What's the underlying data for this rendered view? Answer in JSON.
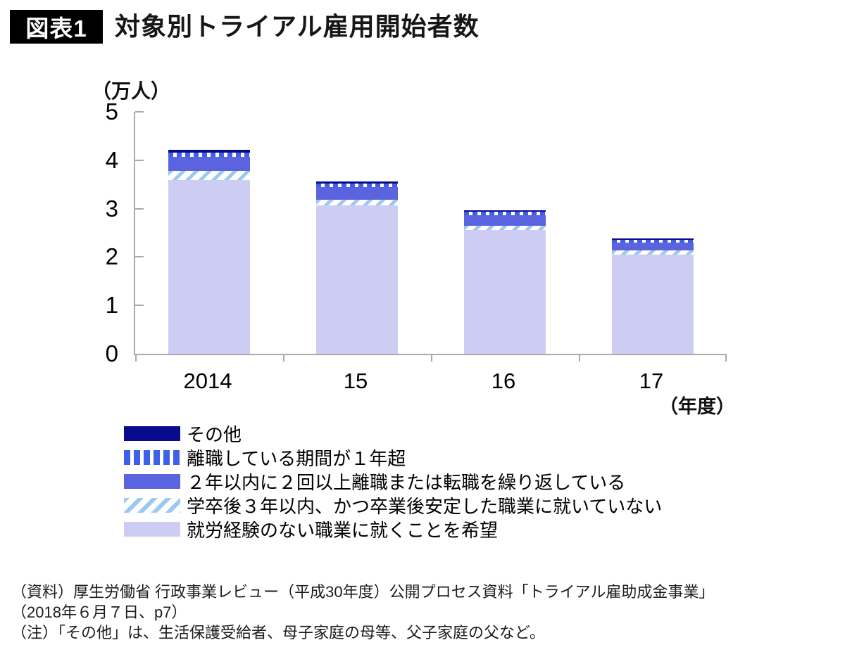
{
  "header": {
    "badge": "図表1",
    "title": "対象別トライアル雇用開始者数"
  },
  "chart_data": {
    "type": "bar",
    "stacked": true,
    "title": "対象別トライアル雇用開始者数",
    "ylabel": "（万人）",
    "xlabel": "（年度）",
    "ylim": [
      0,
      5
    ],
    "y_ticks": [
      0,
      1,
      2,
      3,
      4,
      5
    ],
    "categories": [
      "2014",
      "15",
      "16",
      "17"
    ],
    "series": [
      {
        "name": "就労経験のない職業に就くことを希望",
        "style": "lavender",
        "color": "#cdcdf3",
        "pattern": "solid",
        "values": [
          3.59,
          3.07,
          2.56,
          2.05
        ]
      },
      {
        "name": "学卒後３年以内、かつ卒業後安定した職業に就いていない",
        "style": "hatch",
        "color": "#9dc9f1",
        "pattern": "diagonal-hatch",
        "values": [
          0.19,
          0.12,
          0.08,
          0.08
        ]
      },
      {
        "name": "２年以内に２回以上離職または転職を繰り返している",
        "style": "royal",
        "color": "#5c63df",
        "pattern": "solid",
        "values": [
          0.29,
          0.25,
          0.23,
          0.16
        ]
      },
      {
        "name": "離職している期間が１年超",
        "style": "dash",
        "color": "#3e5fe8",
        "pattern": "vertical-dash",
        "values": [
          0.09,
          0.08,
          0.07,
          0.07
        ]
      },
      {
        "name": "その他",
        "style": "navy",
        "color": "#0a0a8c",
        "pattern": "solid",
        "values": [
          0.06,
          0.04,
          0.03,
          0.03
        ]
      }
    ],
    "legend_position": "bottom-left",
    "legend_order_top_to_bottom": [
      "その他",
      "離職している期間が１年超",
      "２年以内に２回以上離職または転職を繰り返している",
      "学卒後３年以内、かつ卒業後安定した職業に就いていない",
      "就労経験のない職業に就くことを希望"
    ],
    "grid": false
  },
  "footer": {
    "lines": [
      "（資料）厚生労働省 行政事業レビュー（平成30年度）公開プロセス資料「トライアル雇助成金事業」",
      "（2018年６月７日、p7）",
      "（注）「その他」は、生活保護受給者、母子家庭の母等、父子家庭の父など。"
    ]
  }
}
